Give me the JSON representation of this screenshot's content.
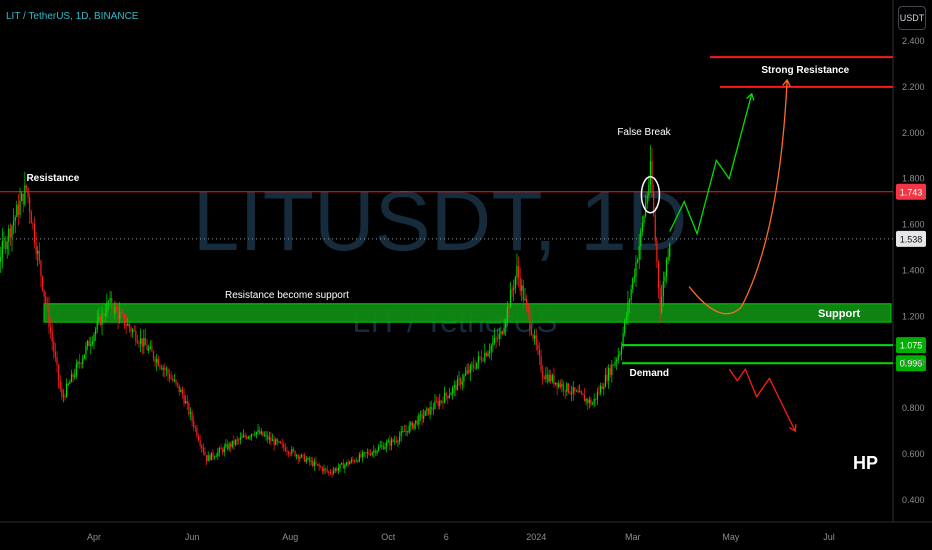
{
  "header": {
    "title": "LIT / TetherUS, 1D, BINANCE",
    "currency_button": "USDT"
  },
  "watermark": {
    "symbol": "LITUSDT, 1D",
    "name": "LIT / TetherUS"
  },
  "signature": "HP",
  "colors": {
    "up": "#26a69a",
    "green": "#00e000",
    "red": "#ff1a1a",
    "orange": "#ff6a2a",
    "axis_text": "#8a8d96"
  },
  "chart_data": {
    "type": "candlestick",
    "x_labels": [
      "Apr",
      "Jun",
      "Aug",
      "Oct",
      "6",
      "2024",
      "Mar",
      "May",
      "Jul"
    ],
    "y_ticks": [
      0.4,
      0.6,
      0.8,
      1.0,
      1.2,
      1.4,
      1.6,
      1.8,
      2.0,
      2.2,
      2.4
    ],
    "y_tick_labels": [
      "0.400",
      "0.600",
      "0.800",
      "1.000",
      "1.200",
      "1.400",
      "1.600",
      "1.800",
      "2.000",
      "2.200",
      "2.400"
    ],
    "ylim": [
      0.33,
      2.5
    ],
    "last_price": 1.538,
    "price_tags": [
      {
        "value": 1.743,
        "label": "1.743",
        "style": "red"
      },
      {
        "value": 1.538,
        "label": "1.538",
        "style": "gray"
      },
      {
        "value": 1.075,
        "label": "1.075",
        "style": "green"
      },
      {
        "value": 0.996,
        "label": "0.996",
        "style": "green"
      }
    ],
    "levels": [
      {
        "name": "Resistance",
        "value": 1.743,
        "color": "red"
      },
      {
        "name": "Strong Resistance",
        "value": 2.2,
        "color": "red"
      },
      {
        "name": "Strong Resistance upper",
        "value": 2.33,
        "color": "red"
      },
      {
        "name": "Demand upper",
        "value": 1.075,
        "color": "green"
      },
      {
        "name": "Demand lower",
        "value": 0.996,
        "color": "green"
      }
    ],
    "support_zone": {
      "low": 1.175,
      "high": 1.255,
      "label": "Support"
    },
    "annotations": [
      {
        "text": "Resistance",
        "x_date": "2023-02-18",
        "y": 1.79
      },
      {
        "text": "Resistance become support",
        "x_date": "2023-07-30",
        "y": 1.28
      },
      {
        "text": "False Break",
        "x_date": "2024-03-08",
        "y": 1.99
      },
      {
        "text": "Strong Resistance",
        "x_date": "2024-05-20",
        "y": 2.26
      },
      {
        "text": "Demand",
        "x_date": "2024-02-28",
        "y": 0.94
      }
    ],
    "key_points": [
      {
        "date": "2023-02-18",
        "price": 1.76
      },
      {
        "date": "2023-03-02",
        "price": 1.26
      },
      {
        "date": "2023-03-12",
        "price": 0.84
      },
      {
        "date": "2023-04-10",
        "price": 1.26
      },
      {
        "date": "2023-05-14",
        "price": 0.98
      },
      {
        "date": "2023-05-26",
        "price": 0.86
      },
      {
        "date": "2023-06-10",
        "price": 0.58
      },
      {
        "date": "2023-07-10",
        "price": 0.7
      },
      {
        "date": "2023-08-25",
        "price": 0.52
      },
      {
        "date": "2023-10-05",
        "price": 0.66
      },
      {
        "date": "2023-11-10",
        "price": 0.88
      },
      {
        "date": "2023-12-10",
        "price": 1.12
      },
      {
        "date": "2023-12-20",
        "price": 1.4
      },
      {
        "date": "2024-01-05",
        "price": 0.95
      },
      {
        "date": "2024-02-05",
        "price": 0.82
      },
      {
        "date": "2024-02-22",
        "price": 1.05
      },
      {
        "date": "2024-03-06",
        "price": 1.55
      },
      {
        "date": "2024-03-12",
        "price": 1.83
      },
      {
        "date": "2024-03-18",
        "price": 1.24
      },
      {
        "date": "2024-03-24",
        "price": 1.54
      }
    ],
    "projections": [
      {
        "name": "bullish",
        "color": "green",
        "points": [
          {
            "date": "2024-03-24",
            "price": 1.57
          },
          {
            "date": "2024-04-02",
            "price": 1.7
          },
          {
            "date": "2024-04-10",
            "price": 1.56
          },
          {
            "date": "2024-04-22",
            "price": 1.88
          },
          {
            "date": "2024-04-30",
            "price": 1.8
          },
          {
            "date": "2024-05-14",
            "price": 2.17
          }
        ]
      },
      {
        "name": "recovery",
        "color": "orange",
        "points": [
          {
            "date": "2024-04-05",
            "price": 1.33
          },
          {
            "date": "2024-04-25",
            "price": 1.24
          },
          {
            "date": "2024-05-25",
            "price": 1.6
          },
          {
            "date": "2024-06-05",
            "price": 2.23
          }
        ]
      },
      {
        "name": "bearish",
        "color": "red",
        "points": [
          {
            "date": "2024-04-30",
            "price": 0.97
          },
          {
            "date": "2024-05-05",
            "price": 0.92
          },
          {
            "date": "2024-05-10",
            "price": 0.97
          },
          {
            "date": "2024-05-17",
            "price": 0.85
          },
          {
            "date": "2024-05-25",
            "price": 0.93
          },
          {
            "date": "2024-06-10",
            "price": 0.7
          }
        ]
      }
    ]
  }
}
